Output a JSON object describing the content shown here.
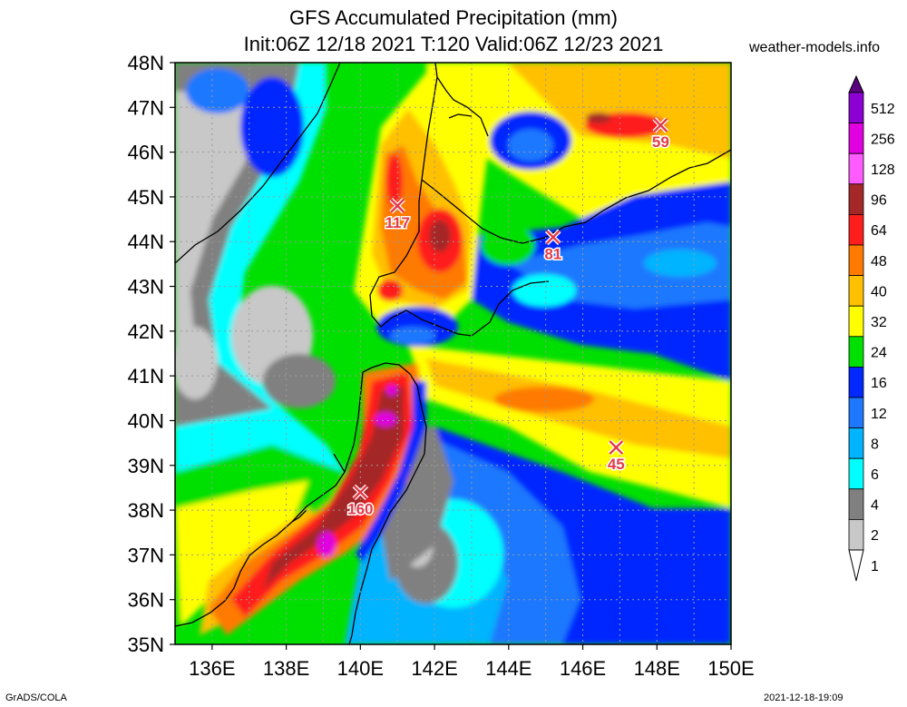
{
  "header": {
    "title_line1": "GFS Accumulated Precipitation (mm)",
    "title_line2": "Init:06Z 12/18 2021 T:120 Valid:06Z 12/23 2021",
    "site": "weather-models.info"
  },
  "map": {
    "lon_range": [
      135,
      150
    ],
    "lat_range": [
      35,
      48
    ],
    "lat_labels": [
      "48N",
      "47N",
      "46N",
      "45N",
      "44N",
      "43N",
      "42N",
      "41N",
      "40N",
      "39N",
      "38N",
      "37N",
      "36N",
      "35N"
    ],
    "lon_labels": [
      "136E",
      "138E",
      "140E",
      "142E",
      "144E",
      "146E",
      "148E",
      "150E"
    ],
    "markers": [
      {
        "label": "117",
        "lon": 141.0,
        "lat": 44.8
      },
      {
        "label": "81",
        "lon": 145.2,
        "lat": 44.1
      },
      {
        "label": "59",
        "lon": 148.1,
        "lat": 46.6
      },
      {
        "label": "45",
        "lon": 146.9,
        "lat": 39.4
      },
      {
        "label": "160",
        "lon": 140.0,
        "lat": 38.4
      }
    ]
  },
  "colorbar": {
    "levels": [
      "512",
      "256",
      "128",
      "96",
      "64",
      "48",
      "40",
      "32",
      "24",
      "16",
      "12",
      "8",
      "6",
      "4",
      "2",
      "1"
    ],
    "colors": [
      "#5a007f",
      "#8c00d4",
      "#e000e0",
      "#ff5cff",
      "#a52828",
      "#ff1e1e",
      "#ff7a00",
      "#ffc000",
      "#ffff00",
      "#00e000",
      "#0028ff",
      "#1e78ff",
      "#00b4ff",
      "#00ffff",
      "#808080",
      "#c8c8c8",
      "#ffffff"
    ]
  },
  "footer": {
    "left": "GrADS/COLA",
    "right": "2021-12-18-19:09"
  }
}
